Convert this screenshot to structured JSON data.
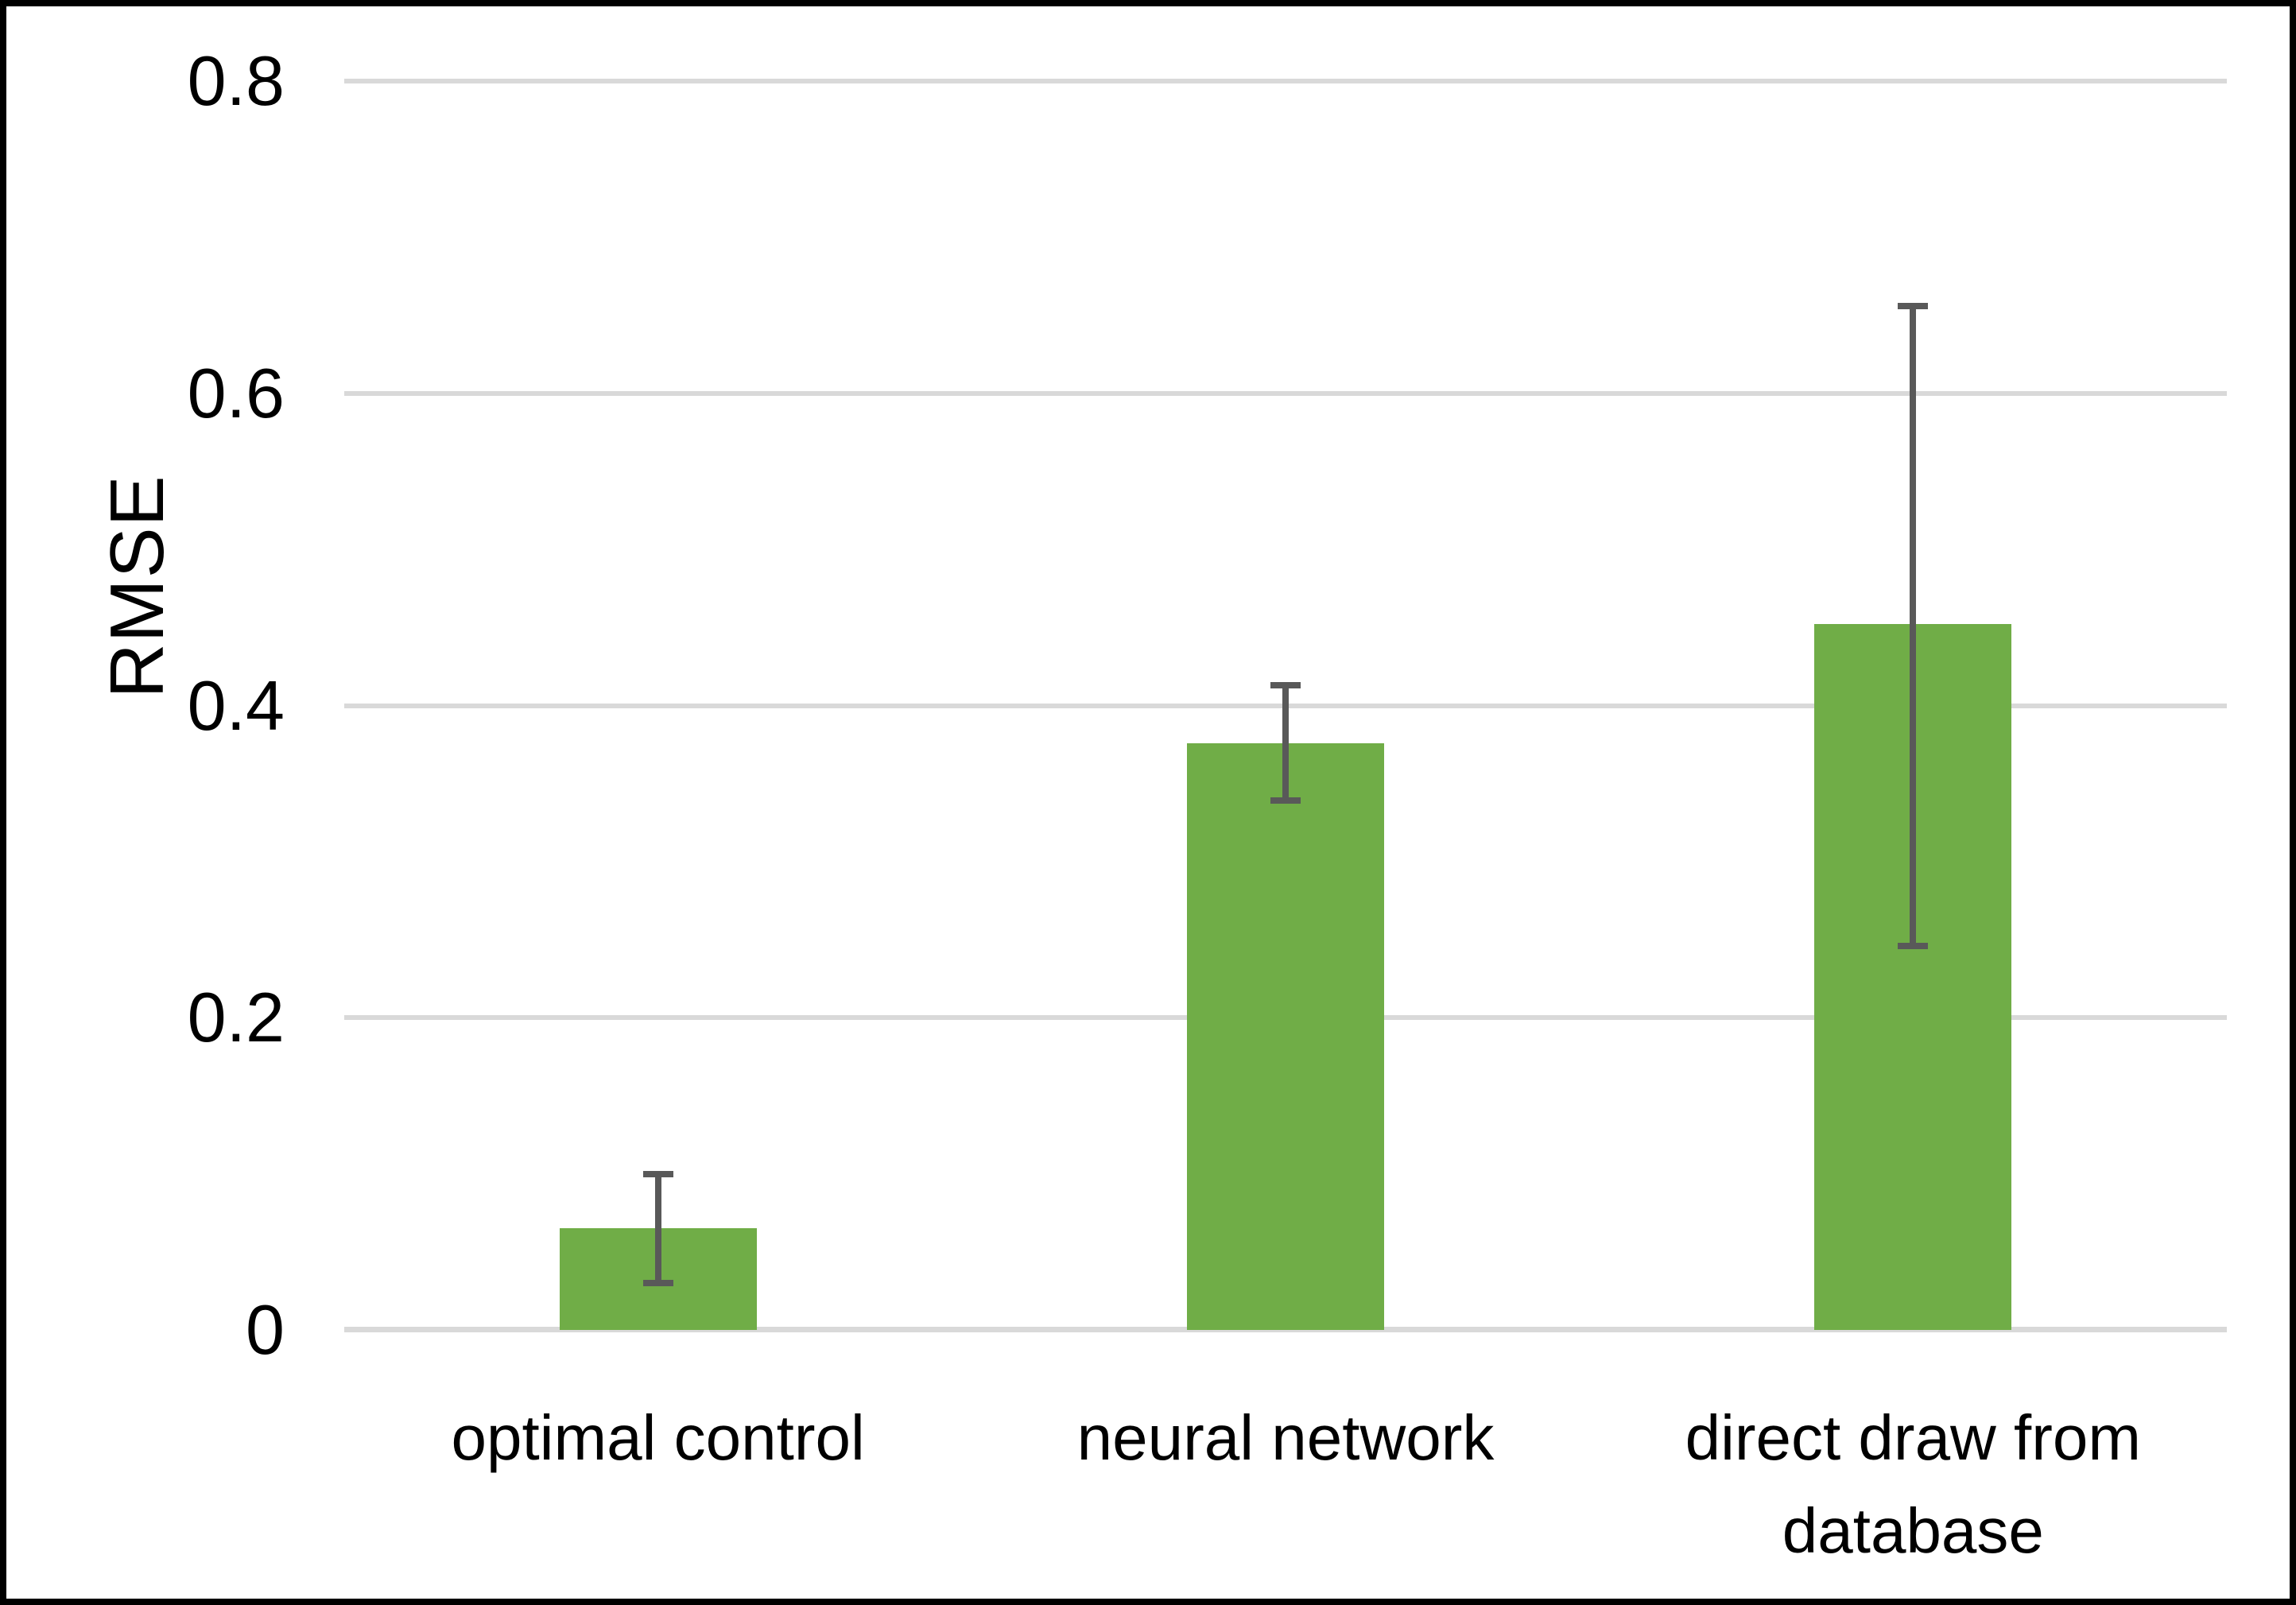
{
  "colors": {
    "bar": "#70ad47",
    "error_bar": "#595959",
    "gridline": "#d9d9d9",
    "axis_line": "#d9d9d9",
    "text": "#000000",
    "frame_border": "#000000",
    "background": "#ffffff"
  },
  "chart_data": {
    "type": "bar",
    "title": "",
    "ylabel": "RMSE",
    "xlabel": "",
    "categories": [
      "optimal control",
      "neural network",
      "direct draw from database"
    ],
    "values": [
      0.065,
      0.376,
      0.452
    ],
    "error_low": [
      0.03,
      0.339,
      0.246
    ],
    "error_high": [
      0.1,
      0.413,
      0.656
    ],
    "ylim": [
      0,
      0.8
    ],
    "yticks": [
      0,
      0.2,
      0.4,
      0.6,
      0.8
    ],
    "ytick_labels": [
      "0",
      "0.2",
      "0.4",
      "0.6",
      "0.8"
    ],
    "grid": "horizontal-gridlines-on",
    "legend": "none",
    "bar_color_name": "green"
  }
}
